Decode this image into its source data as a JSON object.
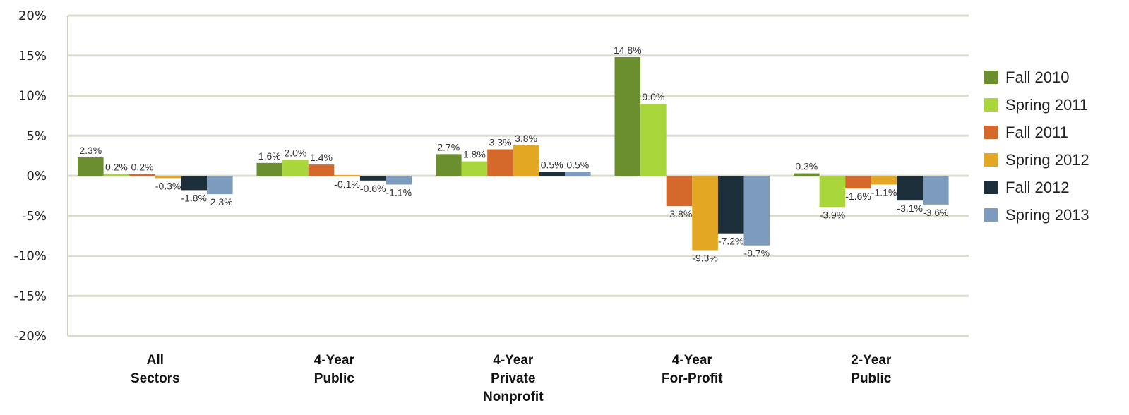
{
  "chart_data": {
    "type": "bar",
    "categories": [
      [
        "All",
        "Sectors"
      ],
      [
        "4-Year",
        "Public"
      ],
      [
        "4-Year",
        "Private",
        "Nonprofit"
      ],
      [
        "4-Year",
        "For-Profit"
      ],
      [
        "2-Year",
        "Public"
      ]
    ],
    "series": [
      {
        "name": "Fall 2010",
        "color": "#6b8e2f",
        "values": [
          2.3,
          1.6,
          2.7,
          14.8,
          0.3
        ],
        "labels": [
          "2.3%",
          "1.6%",
          "2.7%",
          "14.8%",
          "0.3%"
        ]
      },
      {
        "name": "Spring 2011",
        "color": "#a8d63b",
        "values": [
          0.2,
          2.0,
          1.8,
          9.0,
          -3.9
        ],
        "labels": [
          "0.2%",
          "2.0%",
          "1.8%",
          "9.0%",
          "-3.9%"
        ]
      },
      {
        "name": "Fall 2011",
        "color": "#d4692b",
        "values": [
          0.2,
          1.4,
          3.3,
          -3.8,
          -1.6
        ],
        "labels": [
          "0.2%",
          "1.4%",
          "3.3%",
          "-3.8%",
          "-1.6%"
        ]
      },
      {
        "name": "Spring 2012",
        "color": "#e4a723",
        "values": [
          -0.3,
          -0.1,
          3.8,
          -9.3,
          -1.1
        ],
        "labels": [
          "-0.3%",
          "-0.1%",
          "3.8%",
          "-9.3%",
          "-1.1%"
        ]
      },
      {
        "name": "Fall 2012",
        "color": "#1e2f3c",
        "values": [
          -1.8,
          -0.6,
          0.5,
          -7.2,
          -3.1
        ],
        "labels": [
          "-1.8%",
          "-0.6%",
          "0.5%",
          "-7.2%",
          "-3.1%"
        ]
      },
      {
        "name": "Spring 2013",
        "color": "#7d9bbd",
        "values": [
          -2.3,
          -1.1,
          0.5,
          -8.7,
          -3.6
        ],
        "labels": [
          "-2.3%",
          "-1.1%",
          "0.5%",
          "-8.7%",
          "-3.6%"
        ]
      }
    ],
    "y_ticks": [
      "20%",
      "15%",
      "10%",
      "5%",
      "0%",
      "-5%",
      "-10%",
      "-15%",
      "-20%"
    ],
    "y_tick_values": [
      20,
      15,
      10,
      5,
      0,
      -5,
      -10,
      -15,
      -20
    ],
    "ylim": [
      -20,
      20
    ],
    "grid": true,
    "legend_position": "right",
    "title": "",
    "xlabel": "",
    "ylabel": ""
  }
}
